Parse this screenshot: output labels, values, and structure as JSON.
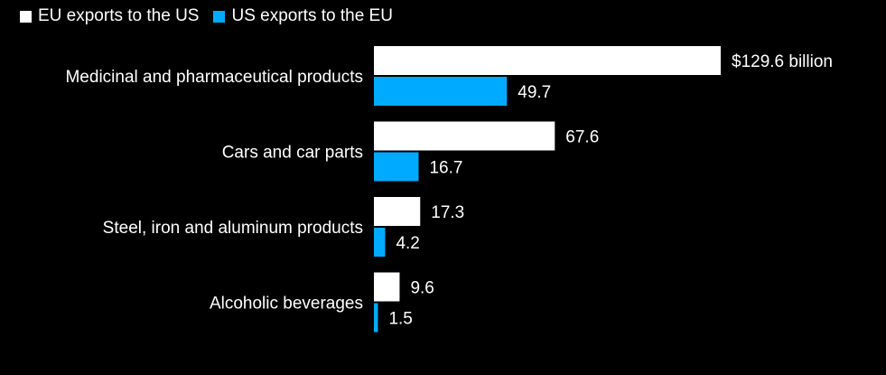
{
  "chart_data": {
    "type": "bar",
    "orientation": "horizontal",
    "categories": [
      "Medicinal and pharmaceutical products",
      "Cars and car parts",
      "Steel, iron and aluminum products",
      "Alcoholic beverages"
    ],
    "series": [
      {
        "name": "EU exports to the US",
        "color": "#ffffff",
        "values": [
          129.6,
          67.6,
          17.3,
          9.6
        ],
        "labels": [
          "$129.6 billion",
          "67.6",
          "17.3",
          "9.6"
        ]
      },
      {
        "name": "US exports to the EU",
        "color": "#00aaff",
        "values": [
          49.7,
          16.7,
          4.2,
          1.5
        ],
        "labels": [
          "49.7",
          "16.7",
          "4.2",
          "1.5"
        ]
      }
    ],
    "title": "",
    "xlabel": "",
    "ylabel": "",
    "xlim": [
      0,
      129.6
    ],
    "grid": false,
    "legend_position": "top-left"
  }
}
